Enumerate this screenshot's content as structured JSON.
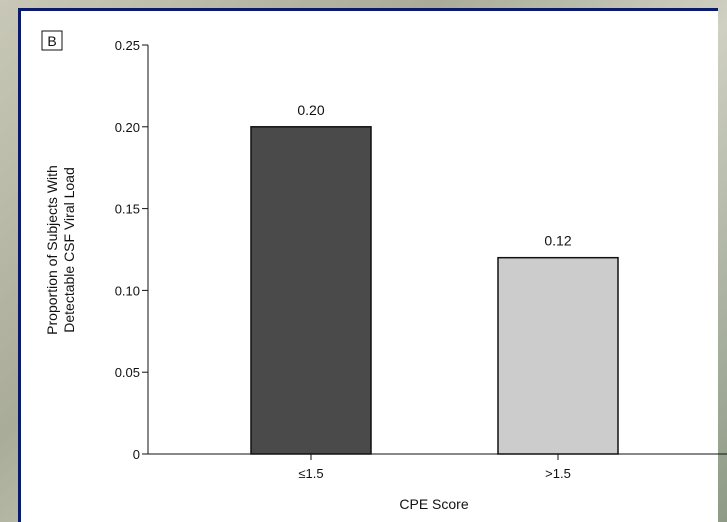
{
  "panel": {
    "letter": "B"
  },
  "chart_data": {
    "type": "bar",
    "categories": [
      "≤1.5",
      ">1.5"
    ],
    "values": [
      0.2,
      0.12
    ],
    "data_labels": [
      "0.20",
      "0.12"
    ],
    "bar_colors": [
      "#4a4a4a",
      "#cccccc"
    ],
    "xlabel": "CPE Score",
    "ylabel_lines": [
      "Proportion of Subjects With",
      "Detectable CSF Viral Load"
    ],
    "ylim": [
      0,
      0.25
    ],
    "yticks": [
      0,
      0.05,
      0.1,
      0.15,
      0.2,
      0.25
    ],
    "ytick_labels": [
      "0",
      "0.05",
      "0.10",
      "0.15",
      "0.20",
      "0.25"
    ],
    "grid": false,
    "legend": "none"
  }
}
